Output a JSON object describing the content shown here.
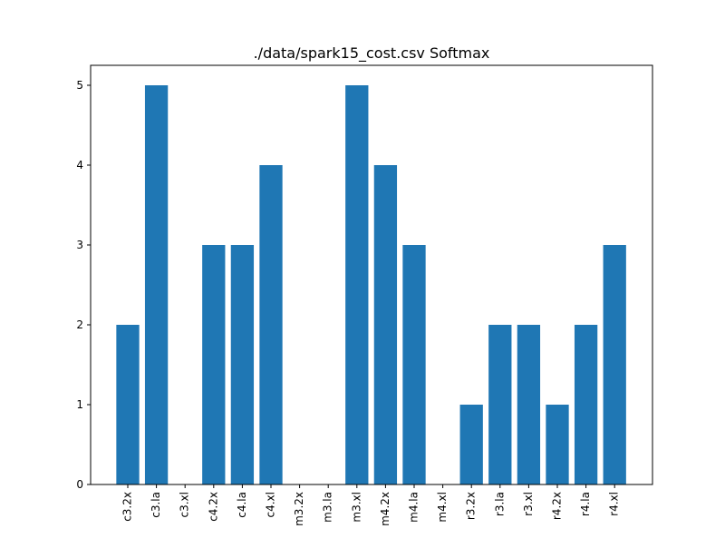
{
  "chart_data": {
    "type": "bar",
    "title": "./data/spark15_cost.csv Softmax",
    "xlabel": "",
    "ylabel": "",
    "categories": [
      "c3.2x",
      "c3.la",
      "c3.xl",
      "c4.2x",
      "c4.la",
      "c4.xl",
      "m3.2x",
      "m3.la",
      "m3.xl",
      "m4.2x",
      "m4.la",
      "m4.xl",
      "r3.2x",
      "r3.la",
      "r3.xl",
      "r4.2x",
      "r4.la",
      "r4.xl"
    ],
    "values": [
      2,
      5,
      0,
      3,
      3,
      4,
      0,
      0,
      5,
      4,
      3,
      0,
      1,
      2,
      2,
      1,
      2,
      3
    ],
    "ylim": [
      0,
      5.25
    ],
    "yticks": [
      0,
      1,
      2,
      3,
      4,
      5
    ],
    "bar_color": "#1f77b4",
    "grid": false,
    "legend": "none"
  }
}
